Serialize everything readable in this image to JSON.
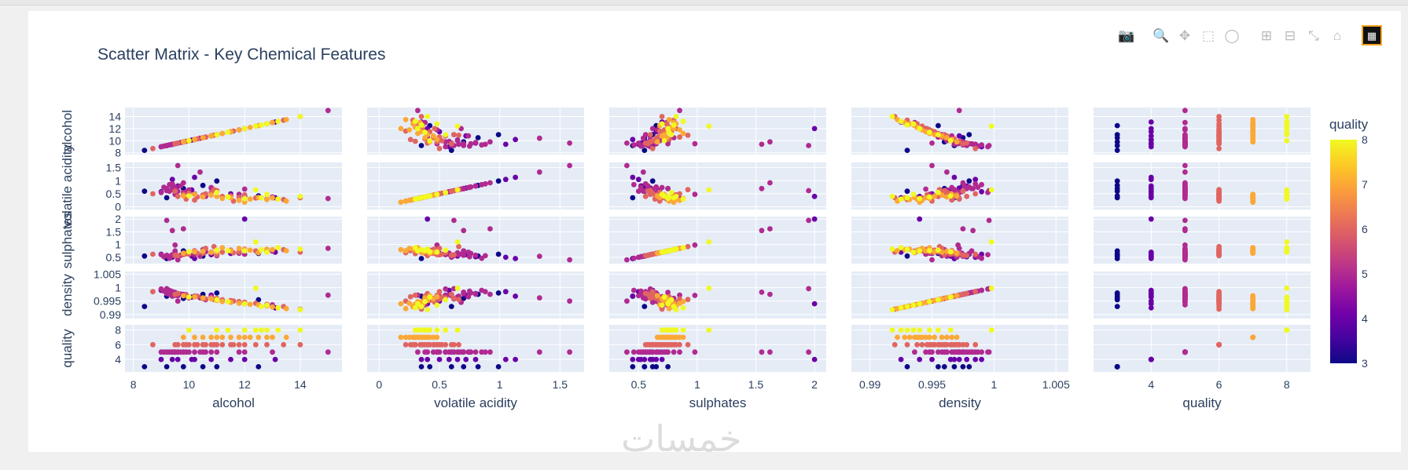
{
  "modebar": {
    "icons": [
      "camera-icon",
      "zoom-icon",
      "pan-icon",
      "box-select-icon",
      "lasso-icon",
      "zoom-in-icon",
      "zoom-out-icon",
      "autoscale-icon",
      "reset-axes-icon",
      "plotly-logo-icon"
    ]
  },
  "watermark": "خمسات",
  "chart_data": {
    "type": "scatter",
    "title": "Scatter Matrix - Key Chemical Features",
    "dimensions": [
      {
        "name": "alcohol",
        "label": "alcohol",
        "range": [
          7.7,
          15.5
        ],
        "ticks": [
          8,
          10,
          12,
          14
        ],
        "ytick_labels": [
          "8",
          "10",
          "12",
          "14"
        ],
        "xtick_labels": [
          "8",
          "10",
          "12",
          "14"
        ]
      },
      {
        "name": "volatile_acidity",
        "label": "volatile acidity",
        "range": [
          -0.1,
          1.7
        ],
        "ticks": [
          0,
          0.5,
          1,
          1.5
        ],
        "ytick_labels": [
          "0",
          "0.5",
          "1",
          "1.5"
        ],
        "xtick_labels": [
          "0",
          "0.5",
          "1",
          "1.5"
        ]
      },
      {
        "name": "sulphates",
        "label": "sulphates",
        "range": [
          0.25,
          2.1
        ],
        "ticks": [
          0.5,
          1,
          1.5,
          2
        ],
        "ytick_labels": [
          "0.5",
          "1",
          "1.5",
          "2"
        ],
        "xtick_labels": [
          "0.5",
          "1",
          "1.5",
          "2"
        ]
      },
      {
        "name": "density",
        "label": "density",
        "range": [
          0.9885,
          1.006
        ],
        "ticks": [
          0.99,
          0.995,
          1,
          1.005
        ],
        "ytick_labels": [
          "0.99",
          "0.995",
          "1",
          "1.005"
        ],
        "xtick_labels": [
          "0.99",
          "0.995",
          "1",
          "1.005"
        ]
      },
      {
        "name": "quality",
        "label": "quality",
        "range": [
          2.3,
          8.7
        ],
        "ticks": [
          4,
          6,
          8
        ],
        "ytick_labels": [
          "4",
          "6",
          "8"
        ],
        "xtick_labels": [
          "4",
          "6",
          "8"
        ]
      }
    ],
    "color_variable": "quality",
    "colorbar": {
      "title": "quality",
      "min": 3,
      "max": 8,
      "ticks": [
        3,
        4,
        5,
        6,
        7,
        8
      ],
      "tick_labels": [
        "3",
        "4",
        "5",
        "6",
        "7",
        "8"
      ],
      "colorscale": [
        "#0d0887",
        "#46039f",
        "#7201a8",
        "#9c179e",
        "#bd3786",
        "#d8576b",
        "#ed7953",
        "#fb9f3a",
        "#fdca26",
        "#f0f921"
      ]
    },
    "points": [
      [
        8.4,
        0.6,
        0.55,
        0.993,
        3
      ],
      [
        11.0,
        0.99,
        0.62,
        0.998,
        3
      ],
      [
        10.5,
        0.82,
        0.55,
        0.9975,
        3
      ],
      [
        9.2,
        0.35,
        0.45,
        0.9968,
        3
      ],
      [
        12.5,
        0.42,
        0.65,
        0.9955,
        3
      ],
      [
        9.8,
        0.7,
        0.75,
        0.996,
        3
      ],
      [
        9.4,
        1.05,
        0.5,
        0.9985,
        4
      ],
      [
        10.1,
        0.65,
        0.55,
        0.9965,
        4
      ],
      [
        10.8,
        0.72,
        0.6,
        0.9972,
        4
      ],
      [
        11.5,
        0.5,
        0.65,
        0.995,
        4
      ],
      [
        9.6,
        0.8,
        0.52,
        0.9978,
        4
      ],
      [
        12.0,
        0.4,
        2.0,
        0.994,
        4
      ],
      [
        10.2,
        1.13,
        0.45,
        0.9968,
        4
      ],
      [
        13.1,
        0.35,
        0.7,
        0.9925,
        4
      ],
      [
        9.0,
        0.58,
        0.62,
        0.999,
        4
      ],
      [
        9.2,
        0.7,
        0.58,
        0.9978,
        5
      ],
      [
        9.4,
        0.66,
        0.6,
        0.9968,
        5
      ],
      [
        9.5,
        0.76,
        0.65,
        0.998,
        5
      ],
      [
        9.6,
        0.6,
        0.5,
        0.997,
        5
      ],
      [
        9.8,
        0.55,
        0.62,
        0.9972,
        5
      ],
      [
        9.4,
        0.88,
        0.56,
        0.9985,
        5
      ],
      [
        10.0,
        0.65,
        0.68,
        0.9962,
        5
      ],
      [
        9.3,
        0.6,
        0.54,
        0.9975,
        5
      ],
      [
        9.5,
        0.7,
        0.75,
        0.9982,
        5
      ],
      [
        10.2,
        0.5,
        0.6,
        0.9968,
        5
      ],
      [
        9.7,
        0.8,
        0.58,
        0.9976,
        5
      ],
      [
        9.9,
        0.58,
        0.66,
        0.9974,
        5
      ],
      [
        10.5,
        0.45,
        0.8,
        0.996,
        5
      ],
      [
        9.1,
        0.75,
        0.52,
        0.9987,
        5
      ],
      [
        11.0,
        0.62,
        0.56,
        0.9958,
        5
      ],
      [
        15.0,
        0.32,
        0.85,
        0.9972,
        5
      ],
      [
        9.6,
        1.58,
        0.4,
        0.995,
        5
      ],
      [
        9.4,
        0.7,
        1.55,
        0.9983,
        5
      ],
      [
        9.8,
        0.92,
        1.62,
        0.9975,
        5
      ],
      [
        10.4,
        1.33,
        0.54,
        0.9962,
        5
      ],
      [
        12.0,
        0.68,
        0.62,
        0.9945,
        5
      ],
      [
        9.2,
        0.62,
        1.95,
        0.9996,
        5
      ],
      [
        10.6,
        0.4,
        0.72,
        0.9955,
        5
      ],
      [
        9.3,
        0.85,
        0.46,
        0.999,
        5
      ],
      [
        11.8,
        0.48,
        0.66,
        0.9948,
        5
      ],
      [
        9.0,
        0.55,
        0.6,
        0.9995,
        5
      ],
      [
        10.8,
        0.74,
        0.7,
        0.9966,
        5
      ],
      [
        9.5,
        0.48,
        0.98,
        0.9971,
        5
      ],
      [
        13.0,
        0.38,
        0.74,
        0.9936,
        5
      ],
      [
        10.5,
        0.45,
        0.65,
        0.996,
        6
      ],
      [
        11.2,
        0.4,
        0.7,
        0.9955,
        6
      ],
      [
        10.0,
        0.52,
        0.62,
        0.9965,
        6
      ],
      [
        11.8,
        0.36,
        0.72,
        0.9948,
        6
      ],
      [
        9.8,
        0.48,
        0.6,
        0.997,
        6
      ],
      [
        12.4,
        0.34,
        0.75,
        0.9942,
        6
      ],
      [
        10.8,
        0.55,
        0.68,
        0.9962,
        6
      ],
      [
        9.5,
        0.6,
        0.58,
        0.9975,
        6
      ],
      [
        11.5,
        0.42,
        0.78,
        0.9952,
        6
      ],
      [
        10.3,
        0.38,
        0.66,
        0.9968,
        6
      ],
      [
        12.8,
        0.3,
        0.74,
        0.9938,
        6
      ],
      [
        10.6,
        0.5,
        0.85,
        0.9958,
        6
      ],
      [
        9.9,
        0.3,
        0.64,
        0.9972,
        6
      ],
      [
        11.0,
        0.62,
        0.6,
        0.996,
        6
      ],
      [
        13.4,
        0.28,
        0.8,
        0.993,
        6
      ],
      [
        8.7,
        0.5,
        0.62,
        0.9985,
        6
      ],
      [
        10.2,
        0.26,
        0.76,
        0.9966,
        6
      ],
      [
        12.0,
        0.46,
        0.82,
        0.9946,
        6
      ],
      [
        14.0,
        0.35,
        0.7,
        0.992,
        6
      ],
      [
        9.6,
        0.4,
        0.56,
        0.9978,
        6
      ],
      [
        11.6,
        0.22,
        0.68,
        0.995,
        6
      ],
      [
        10.9,
        0.66,
        0.92,
        0.9956,
        6
      ],
      [
        11.5,
        0.35,
        0.75,
        0.9945,
        7
      ],
      [
        12.2,
        0.3,
        0.78,
        0.9938,
        7
      ],
      [
        11.0,
        0.4,
        0.72,
        0.9952,
        7
      ],
      [
        12.8,
        0.28,
        0.82,
        0.9932,
        7
      ],
      [
        10.8,
        0.45,
        0.7,
        0.9958,
        7
      ],
      [
        11.8,
        0.25,
        0.85,
        0.9942,
        7
      ],
      [
        13.0,
        0.34,
        0.8,
        0.9928,
        7
      ],
      [
        10.5,
        0.38,
        0.74,
        0.9962,
        7
      ],
      [
        12.5,
        0.36,
        0.68,
        0.9936,
        7
      ],
      [
        11.2,
        0.32,
        0.88,
        0.9948,
        7
      ],
      [
        13.5,
        0.22,
        0.76,
        0.9922,
        7
      ],
      [
        9.8,
        0.42,
        0.66,
        0.997,
        7
      ],
      [
        12.0,
        0.18,
        0.8,
        0.994,
        7
      ],
      [
        10.2,
        0.48,
        0.72,
        0.9966,
        7
      ],
      [
        12.6,
        0.35,
        0.8,
        0.993,
        8
      ],
      [
        12.0,
        0.32,
        0.75,
        0.994,
        8
      ],
      [
        14.0,
        0.4,
        0.82,
        0.9918,
        8
      ],
      [
        11.4,
        0.38,
        0.76,
        0.9948,
        8
      ],
      [
        12.8,
        0.48,
        0.7,
        0.9935,
        8
      ],
      [
        13.2,
        0.3,
        0.88,
        0.9925,
        8
      ],
      [
        11.0,
        0.55,
        0.78,
        0.9955,
        8
      ],
      [
        10.0,
        0.42,
        0.72,
        0.9965,
        8
      ],
      [
        12.4,
        0.65,
        1.1,
        0.9998,
        8
      ]
    ]
  }
}
